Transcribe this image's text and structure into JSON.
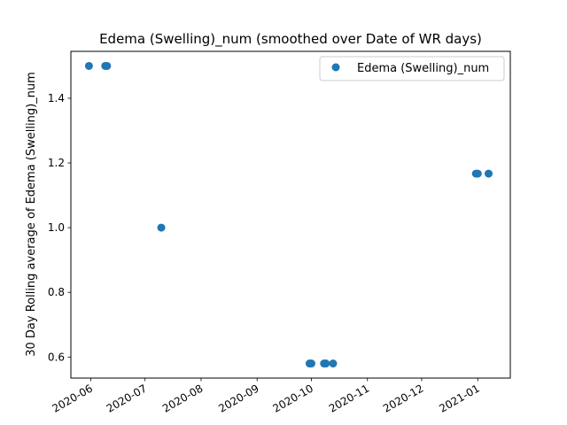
{
  "chart_data": {
    "type": "scatter",
    "title": "Edema (Swelling)_num (smoothed over Date of WR days)",
    "xlabel": "",
    "ylabel": "30 Day Rolling average of Edema (Swelling)_num",
    "x_ticks": [
      "2020-06-01",
      "2020-07-01",
      "2020-08-01",
      "2020-09-01",
      "2020-10-01",
      "2020-11-01",
      "2020-12-01",
      "2021-01-01"
    ],
    "x_tick_labels": [
      "2020-06",
      "2020-07",
      "2020-08",
      "2020-09",
      "2020-10",
      "2020-11",
      "2020-12",
      "2021-01"
    ],
    "xlim": [
      "2020-05-21",
      "2021-01-19"
    ],
    "y_ticks": [
      0.6,
      0.8,
      1.0,
      1.2,
      1.4
    ],
    "y_tick_labels": [
      "0.6",
      "0.8",
      "1.0",
      "1.2",
      "1.4"
    ],
    "ylim": [
      0.535,
      1.545
    ],
    "grid": false,
    "legend": {
      "position": "top-right",
      "entries": [
        "Edema (Swelling)_num"
      ]
    },
    "series": [
      {
        "name": "Edema (Swelling)_num",
        "color": "#1f77b4",
        "points": [
          {
            "x": "2020-05-31",
            "y": 1.5
          },
          {
            "x": "2020-06-09",
            "y": 1.5
          },
          {
            "x": "2020-06-10",
            "y": 1.5
          },
          {
            "x": "2020-07-10",
            "y": 1.0
          },
          {
            "x": "2020-09-30",
            "y": 0.58
          },
          {
            "x": "2020-10-01",
            "y": 0.58
          },
          {
            "x": "2020-10-08",
            "y": 0.58
          },
          {
            "x": "2020-10-09",
            "y": 0.58
          },
          {
            "x": "2020-10-13",
            "y": 0.58
          },
          {
            "x": "2020-12-31",
            "y": 1.167
          },
          {
            "x": "2021-01-01",
            "y": 1.167
          },
          {
            "x": "2021-01-07",
            "y": 1.167
          }
        ]
      }
    ]
  }
}
